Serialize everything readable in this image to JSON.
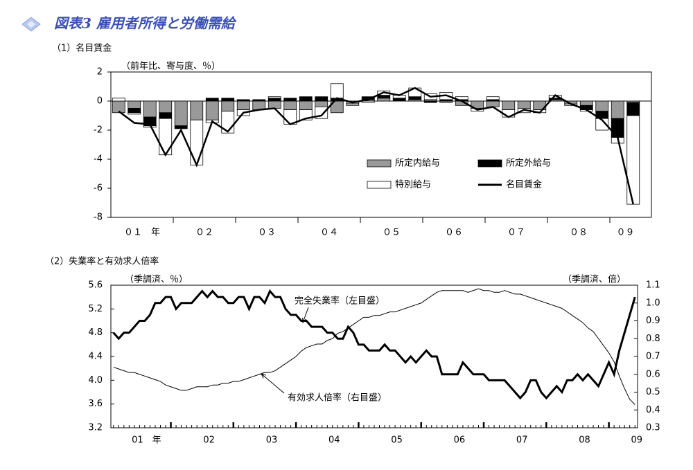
{
  "header": {
    "title": "図表3 雇用者所得と労働需給"
  },
  "chart_data": [
    {
      "type": "bar",
      "stacked": true,
      "title": "（1）名目賃金",
      "y_label": "（前年比、寄与度、％）",
      "categories": [
        null,
        "０１　年",
        null,
        null,
        null,
        "０２",
        null,
        null,
        null,
        "０３",
        null,
        null,
        null,
        "０４",
        null,
        null,
        null,
        "０５",
        null,
        null,
        null,
        "０６",
        null,
        null,
        null,
        "０７",
        null,
        null,
        null,
        "０８",
        null,
        null,
        "０９",
        null
      ],
      "series": [
        {
          "name": "所定内給与",
          "color": "#999999",
          "values": [
            -0.8,
            -0.5,
            -1.1,
            -0.8,
            -1.7,
            -1.3,
            -1.3,
            -0.7,
            -0.6,
            -0.6,
            -0.5,
            -0.6,
            -0.6,
            -0.4,
            -0.8,
            -0.2,
            0.1,
            0.2,
            0.0,
            0.1,
            0.1,
            -0.1,
            -0.3,
            -0.5,
            -0.4,
            -0.6,
            -0.5,
            -0.6,
            0.1,
            -0.2,
            -0.3,
            -0.7,
            -1.2,
            -0.1
          ]
        },
        {
          "name": "所定外給与",
          "color": "#000000",
          "values": [
            0.0,
            -0.3,
            -0.6,
            -0.4,
            -0.2,
            0.0,
            0.2,
            0.2,
            0.1,
            0.1,
            0.2,
            0.2,
            0.3,
            0.3,
            0.2,
            0.0,
            0.2,
            0.2,
            0.2,
            0.2,
            -0.1,
            0.1,
            0.1,
            0.0,
            0.1,
            0.0,
            0.0,
            0.0,
            0.1,
            0.0,
            -0.3,
            -0.5,
            -1.3,
            -0.9
          ]
        },
        {
          "name": "特別給与",
          "color": "#ffffff",
          "values": [
            0.2,
            -0.1,
            -0.1,
            -2.5,
            0.0,
            -3.1,
            -0.2,
            -1.5,
            -0.4,
            0.0,
            0.1,
            -1.0,
            -0.7,
            -0.8,
            1.0,
            -0.1,
            -0.1,
            0.3,
            0.2,
            0.6,
            0.4,
            0.5,
            0.2,
            -0.2,
            0.2,
            -0.5,
            -0.3,
            -0.2,
            0.2,
            -0.1,
            -0.1,
            -0.8,
            -0.4,
            -6.1
          ]
        },
        {
          "name": "名目賃金",
          "type": "line",
          "color": "#000000",
          "values": [
            -0.7,
            -1.5,
            -1.6,
            -3.7,
            -2.0,
            -4.4,
            -1.4,
            -2.1,
            -0.8,
            -0.6,
            -0.5,
            -1.6,
            -1.2,
            -1.0,
            0.2,
            -0.1,
            0.1,
            0.6,
            0.4,
            0.9,
            0.3,
            0.4,
            0.0,
            -0.6,
            -0.4,
            -1.1,
            -0.6,
            -0.8,
            0.4,
            -0.2,
            -0.6,
            -1.3,
            -2.5,
            -7.1
          ]
        }
      ],
      "ylim": [
        -8,
        2
      ],
      "yticks": [
        -8,
        -6,
        -4,
        -2,
        0,
        2
      ],
      "legend": "lower right"
    },
    {
      "type": "line",
      "title": "（2）失業率と有効求人倍率",
      "y_label": "（季調済、％）",
      "y2_label": "（季調済、倍）",
      "categories": [
        null,
        null,
        null,
        null,
        null,
        "01　年",
        null,
        null,
        null,
        null,
        null,
        null,
        null,
        null,
        null,
        null,
        null,
        "02",
        null,
        null,
        null,
        null,
        null,
        null,
        null,
        null,
        null,
        null,
        null,
        "03",
        null,
        null,
        null,
        null,
        null,
        null,
        null,
        null,
        null,
        null,
        null,
        "04",
        null,
        null,
        null,
        null,
        null,
        null,
        null,
        null,
        null,
        null,
        null,
        "05",
        null,
        null,
        null,
        null,
        null,
        null,
        null,
        null,
        null,
        null,
        null,
        "06",
        null,
        null,
        null,
        null,
        null,
        null,
        null,
        null,
        null,
        null,
        null,
        "07",
        null,
        null,
        null,
        null,
        null,
        null,
        null,
        null,
        null,
        null,
        null,
        "08",
        null,
        null,
        null,
        null,
        null,
        null,
        null,
        null,
        null,
        "09",
        null
      ],
      "series": [
        {
          "name": "完全失業率（左目盛）",
          "color": "#000000",
          "values": [
            4.8,
            4.7,
            4.8,
            4.8,
            4.9,
            5.0,
            5.0,
            5.1,
            5.3,
            5.3,
            5.4,
            5.4,
            5.2,
            5.3,
            5.3,
            5.3,
            5.4,
            5.5,
            5.4,
            5.5,
            5.4,
            5.4,
            5.3,
            5.3,
            5.4,
            5.4,
            5.2,
            5.4,
            5.4,
            5.3,
            5.5,
            5.4,
            5.4,
            5.2,
            5.1,
            5.1,
            5.0,
            5.0,
            4.9,
            4.9,
            4.9,
            4.8,
            4.8,
            4.7,
            4.7,
            4.9,
            4.8,
            4.6,
            4.6,
            4.5,
            4.5,
            4.5,
            4.6,
            4.5,
            4.5,
            4.4,
            4.3,
            4.4,
            4.3,
            4.4,
            4.5,
            4.4,
            4.4,
            4.1,
            4.1,
            4.1,
            4.1,
            4.3,
            4.2,
            4.1,
            4.1,
            4.1,
            4.0,
            4.0,
            4.0,
            4.0,
            3.9,
            3.8,
            3.7,
            3.8,
            4.0,
            4.0,
            3.8,
            3.7,
            3.8,
            3.9,
            3.8,
            4.0,
            4.0,
            4.1,
            4.0,
            4.1,
            4.0,
            3.9,
            4.1,
            4.3,
            4.1,
            4.5,
            4.8,
            5.1,
            5.4
          ]
        },
        {
          "name": "有効求人倍率（右目盛）",
          "axis": "y2",
          "color": "#000000",
          "values": [
            0.64,
            0.63,
            0.62,
            0.61,
            0.61,
            0.6,
            0.59,
            0.58,
            0.57,
            0.56,
            0.54,
            0.53,
            0.52,
            0.51,
            0.51,
            0.52,
            0.53,
            0.53,
            0.53,
            0.54,
            0.54,
            0.55,
            0.55,
            0.56,
            0.56,
            0.57,
            0.58,
            0.59,
            0.6,
            0.61,
            0.61,
            0.62,
            0.64,
            0.66,
            0.68,
            0.7,
            0.73,
            0.75,
            0.76,
            0.77,
            0.77,
            0.79,
            0.8,
            0.83,
            0.84,
            0.86,
            0.88,
            0.9,
            0.92,
            0.92,
            0.93,
            0.93,
            0.94,
            0.95,
            0.95,
            0.96,
            0.97,
            0.98,
            0.99,
            1.0,
            1.02,
            1.04,
            1.06,
            1.07,
            1.07,
            1.07,
            1.07,
            1.07,
            1.06,
            1.07,
            1.08,
            1.07,
            1.07,
            1.06,
            1.06,
            1.07,
            1.06,
            1.05,
            1.05,
            1.04,
            1.03,
            1.02,
            1.01,
            1.0,
            0.99,
            0.98,
            0.97,
            0.95,
            0.93,
            0.91,
            0.89,
            0.86,
            0.84,
            0.8,
            0.76,
            0.72,
            0.67,
            0.59,
            0.52,
            0.46,
            0.43
          ]
        }
      ],
      "ylim": [
        3.2,
        5.6
      ],
      "yticks": [
        3.2,
        3.6,
        {
          "value": 4.0,
          "label": "4.0"
        },
        4.4,
        4.8,
        5.2,
        5.6
      ],
      "y2lim": [
        0.3,
        1.1
      ],
      "y2ticks": [
        0.3,
        0.4,
        0.5,
        0.6,
        0.7,
        0.8,
        0.9,
        {
          "value": 1.0,
          "label": "1.0"
        },
        1.1
      ]
    }
  ]
}
